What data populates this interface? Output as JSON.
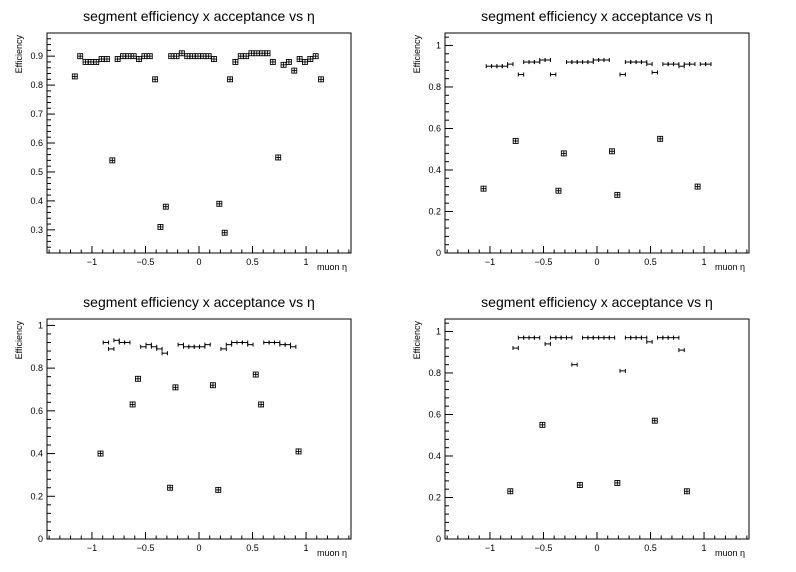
{
  "chart_data": [
    {
      "type": "scatter",
      "title": "segment efficiency x acceptance vs   η",
      "xlabel": "muon   η",
      "ylabel": "Efficiency",
      "xlim": [
        -1.42,
        1.42
      ],
      "ylim": [
        0.22,
        0.98
      ],
      "xticks": [
        -1,
        -0.5,
        0,
        0.5,
        1
      ],
      "xtick_labels": [
        "−1",
        "−0.5",
        "0",
        "0.5",
        "1"
      ],
      "yticks": [
        0.3,
        0.4,
        0.5,
        0.6,
        0.7,
        0.8,
        0.9
      ],
      "ytick_labels": [
        "0.3",
        "0.4",
        "0.5",
        "0.6",
        "0.7",
        "0.8",
        "0.9"
      ],
      "grid": false,
      "marker": "box",
      "x": [
        -1.16,
        -1.11,
        -1.06,
        -1.01,
        -0.96,
        -0.91,
        -0.86,
        -0.81,
        -0.76,
        -0.71,
        -0.66,
        -0.61,
        -0.56,
        -0.51,
        -0.46,
        -0.41,
        -0.36,
        -0.31,
        -0.26,
        -0.21,
        -0.16,
        -0.11,
        -0.06,
        -0.01,
        0.04,
        0.09,
        0.14,
        0.19,
        0.24,
        0.29,
        0.34,
        0.39,
        0.44,
        0.49,
        0.54,
        0.59,
        0.64,
        0.69,
        0.74,
        0.79,
        0.84,
        0.89,
        0.94,
        0.99,
        1.04,
        1.09,
        1.14
      ],
      "y": [
        0.83,
        0.9,
        0.88,
        0.88,
        0.88,
        0.89,
        0.89,
        0.54,
        0.89,
        0.9,
        0.9,
        0.9,
        0.89,
        0.9,
        0.9,
        0.82,
        0.31,
        0.38,
        0.9,
        0.9,
        0.91,
        0.9,
        0.9,
        0.9,
        0.9,
        0.9,
        0.89,
        0.39,
        0.29,
        0.82,
        0.88,
        0.9,
        0.9,
        0.91,
        0.91,
        0.91,
        0.91,
        0.88,
        0.55,
        0.87,
        0.88,
        0.85,
        0.89,
        0.88,
        0.89,
        0.9,
        0.82
      ]
    },
    {
      "type": "scatter",
      "title": "segment efficiency x acceptance vs   η",
      "xlabel": "muon   η",
      "ylabel": "Efficiency",
      "xlim": [
        -1.42,
        1.42
      ],
      "ylim": [
        0,
        1.06
      ],
      "xticks": [
        -1,
        -0.5,
        0,
        0.5,
        1
      ],
      "xtick_labels": [
        "−1",
        "−0.5",
        "0",
        "0.5",
        "1"
      ],
      "yticks": [
        0,
        0.2,
        0.4,
        0.6,
        0.8,
        1
      ],
      "ytick_labels": [
        "0",
        "0.2",
        "0.4",
        "0.6",
        "0.8",
        "1"
      ],
      "grid": false,
      "marker": "bar",
      "x": [
        -1.06,
        -1.01,
        -0.96,
        -0.91,
        -0.86,
        -0.81,
        -0.76,
        -0.71,
        -0.66,
        -0.61,
        -0.56,
        -0.51,
        -0.46,
        -0.41,
        -0.36,
        -0.31,
        -0.26,
        -0.21,
        -0.16,
        -0.11,
        -0.06,
        -0.01,
        0.04,
        0.09,
        0.14,
        0.19,
        0.24,
        0.29,
        0.34,
        0.39,
        0.44,
        0.49,
        0.54,
        0.59,
        0.64,
        0.69,
        0.74,
        0.79,
        0.84,
        0.89,
        0.94,
        0.99,
        1.04
      ],
      "y": [
        0.31,
        0.9,
        0.9,
        0.9,
        0.9,
        0.91,
        0.54,
        0.86,
        0.92,
        0.92,
        0.92,
        0.93,
        0.93,
        0.86,
        0.3,
        0.48,
        0.92,
        0.92,
        0.92,
        0.92,
        0.92,
        0.93,
        0.93,
        0.93,
        0.49,
        0.28,
        0.86,
        0.92,
        0.92,
        0.92,
        0.92,
        0.91,
        0.87,
        0.55,
        0.91,
        0.91,
        0.91,
        0.9,
        0.91,
        0.91,
        0.32,
        0.91,
        0.91
      ]
    },
    {
      "type": "scatter",
      "title": "segment efficiency x acceptance vs   η",
      "xlabel": "muon   η",
      "ylabel": "Efficiency",
      "xlim": [
        -1.42,
        1.42
      ],
      "ylim": [
        0,
        1.03
      ],
      "xticks": [
        -1,
        -0.5,
        0,
        0.5,
        1
      ],
      "xtick_labels": [
        "−1",
        "−0.5",
        "0",
        "0.5",
        "1"
      ],
      "yticks": [
        0,
        0.2,
        0.4,
        0.6,
        0.8,
        1
      ],
      "ytick_labels": [
        "0",
        "0.2",
        "0.4",
        "0.6",
        "0.8",
        "1"
      ],
      "grid": false,
      "marker": "bar",
      "x": [
        -0.92,
        -0.87,
        -0.82,
        -0.77,
        -0.72,
        -0.67,
        -0.62,
        -0.57,
        -0.52,
        -0.47,
        -0.42,
        -0.37,
        -0.32,
        -0.27,
        -0.22,
        -0.17,
        -0.12,
        -0.07,
        -0.02,
        0.03,
        0.08,
        0.13,
        0.18,
        0.23,
        0.28,
        0.33,
        0.38,
        0.43,
        0.48,
        0.53,
        0.58,
        0.63,
        0.68,
        0.73,
        0.78,
        0.83,
        0.88,
        0.93
      ],
      "y": [
        0.4,
        0.92,
        0.89,
        0.93,
        0.92,
        0.92,
        0.63,
        0.75,
        0.9,
        0.91,
        0.9,
        0.89,
        0.87,
        0.24,
        0.71,
        0.91,
        0.9,
        0.9,
        0.9,
        0.9,
        0.91,
        0.72,
        0.23,
        0.89,
        0.91,
        0.92,
        0.92,
        0.92,
        0.91,
        0.77,
        0.63,
        0.92,
        0.92,
        0.92,
        0.91,
        0.91,
        0.9,
        0.41
      ]
    },
    {
      "type": "scatter",
      "title": "segment efficiency x acceptance vs   η",
      "xlabel": "muon   η",
      "ylabel": "Efficiency",
      "xlim": [
        -1.42,
        1.42
      ],
      "ylim": [
        0,
        1.06
      ],
      "xticks": [
        -1,
        -0.5,
        0,
        0.5,
        1
      ],
      "xtick_labels": [
        "−1",
        "−0.5",
        "0",
        "0.5",
        "1"
      ],
      "yticks": [
        0,
        0.2,
        0.4,
        0.6,
        0.8,
        1
      ],
      "ytick_labels": [
        "0",
        "0.2",
        "0.4",
        "0.6",
        "0.8",
        "1"
      ],
      "grid": false,
      "marker": "bar",
      "x": [
        -0.81,
        -0.76,
        -0.71,
        -0.66,
        -0.61,
        -0.56,
        -0.51,
        -0.46,
        -0.41,
        -0.36,
        -0.31,
        -0.26,
        -0.21,
        -0.16,
        -0.11,
        -0.06,
        -0.01,
        0.04,
        0.09,
        0.14,
        0.19,
        0.24,
        0.29,
        0.34,
        0.39,
        0.44,
        0.49,
        0.54,
        0.59,
        0.64,
        0.69,
        0.74,
        0.79,
        0.84
      ],
      "y": [
        0.23,
        0.92,
        0.97,
        0.97,
        0.97,
        0.97,
        0.55,
        0.94,
        0.97,
        0.97,
        0.97,
        0.97,
        0.84,
        0.26,
        0.97,
        0.97,
        0.97,
        0.97,
        0.97,
        0.97,
        0.27,
        0.81,
        0.97,
        0.97,
        0.97,
        0.97,
        0.95,
        0.57,
        0.97,
        0.97,
        0.97,
        0.97,
        0.91,
        0.23
      ]
    }
  ]
}
